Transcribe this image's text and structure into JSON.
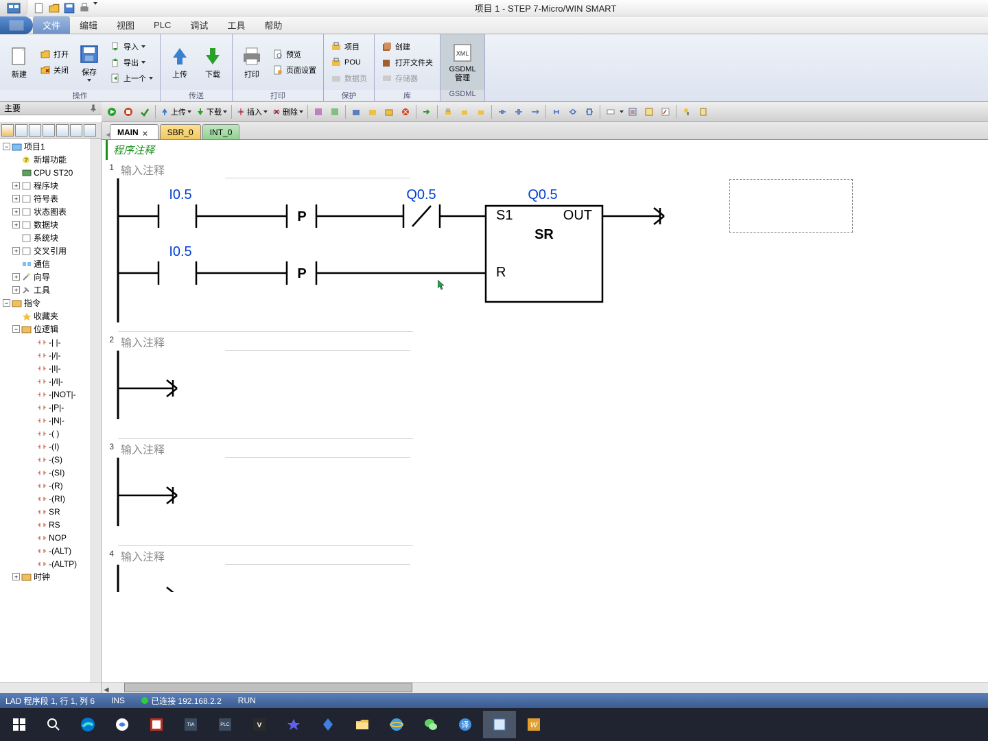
{
  "title": "项目 1 - STEP 7-Micro/WIN SMART",
  "menus": {
    "file": "文件",
    "edit": "编辑",
    "view": "视图",
    "plc": "PLC",
    "debug": "调试",
    "tool": "工具",
    "help": "帮助"
  },
  "ribbon": {
    "groups": {
      "operate": "操作",
      "transfer": "传送",
      "print": "打印",
      "protect": "保护",
      "library": "库",
      "gsdml": "GSDML"
    },
    "btns": {
      "new": "新建",
      "open": "打开",
      "close": "关闭",
      "save": "保存",
      "import": "导入",
      "export": "导出",
      "prev": "上一个",
      "upload": "上传",
      "download": "下载",
      "print_b": "打印",
      "preview": "预览",
      "pagesetup": "页面设置",
      "project": "项目",
      "pou": "POU",
      "datapage": "数据页",
      "create": "创建",
      "openlib": "打开文件夹",
      "memory": "存储器",
      "gsdml_mgr": "GSDML\n管理"
    }
  },
  "toolbar": {
    "upload": "上传",
    "download": "下载",
    "insert": "插入",
    "delete": "删除"
  },
  "panel": {
    "title": "主要"
  },
  "tree": {
    "root": "项目1",
    "newfn": "新增功能",
    "cpu": "CPU ST20",
    "progblk": "程序块",
    "symtbl": "符号表",
    "statechart": "状态图表",
    "datablk": "数据块",
    "sysblk": "系统块",
    "crossref": "交叉引用",
    "comm": "通信",
    "wizard": "向导",
    "tools": "工具",
    "instr": "指令",
    "fav": "收藏夹",
    "bitlogic": "位逻辑",
    "contacts": [
      "-| |-",
      "-|/|-",
      "-|I|-",
      "-|/I|-",
      "-|NOT|-",
      "-|P|-",
      "-|N|-",
      "-( )",
      "-(I)",
      "-(S)",
      "-(SI)",
      "-(R)",
      "-(RI)",
      "SR",
      "RS",
      "NOP",
      "-(ALT)",
      "-(ALTP)"
    ],
    "clock": "时钟"
  },
  "tabs": {
    "main": "MAIN",
    "sbr": "SBR_0",
    "int": "INT_0"
  },
  "editor": {
    "prog_comment": "程序注释",
    "net_comment": "输入注释",
    "lad": {
      "i05": "I0.5",
      "q05": "Q0.5",
      "p": "P",
      "sr": "SR",
      "s1": "S1",
      "r": "R",
      "out": "OUT"
    }
  },
  "status": {
    "pos": "LAD 程序段 1, 行 1, 列 6",
    "ins": "INS",
    "conn": "已连接 192.168.2.2",
    "run": "RUN"
  },
  "colors": {
    "operand": "#0040d0",
    "green": "#1a8f1a"
  }
}
